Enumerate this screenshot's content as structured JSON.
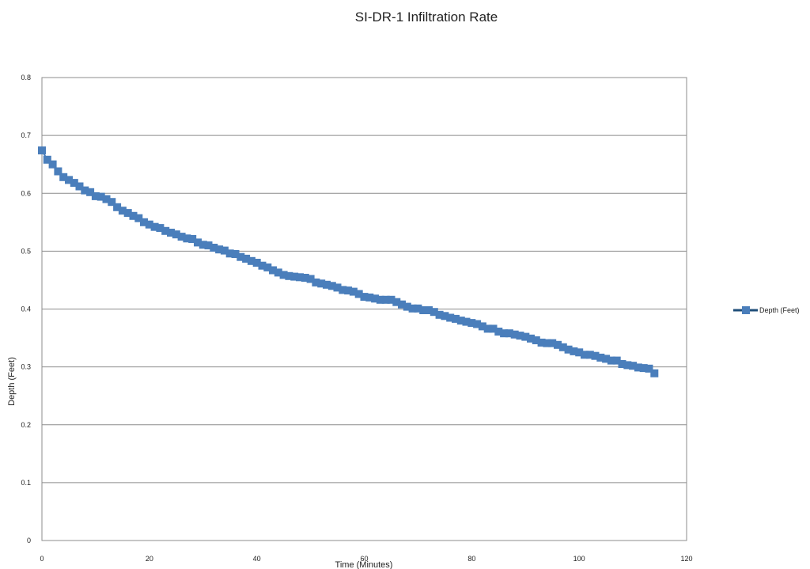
{
  "chart_data": {
    "type": "line",
    "title": "SI-DR-1 Infiltration Rate",
    "xlabel": "Time (Minutes)",
    "ylabel": "Depth (Feet)",
    "xlim": [
      0,
      120
    ],
    "ylim": [
      0,
      0.8
    ],
    "x_ticks": [
      "0",
      "20",
      "40",
      "60",
      "80",
      "100",
      "120"
    ],
    "y_ticks": [
      "0",
      "0.1",
      "0.2",
      "0.3",
      "0.4",
      "0.5",
      "0.6",
      "0.7",
      "0.8"
    ],
    "grid": "horizontal",
    "legend_position": "right",
    "marker": "square",
    "color": "#4a7ebb",
    "series": [
      {
        "name": "Depth (Feet)",
        "x": [
          0,
          1,
          2,
          3,
          4,
          5,
          6,
          7,
          8,
          9,
          10,
          11,
          12,
          13,
          14,
          15,
          16,
          17,
          18,
          19,
          20,
          21,
          22,
          23,
          24,
          25,
          26,
          27,
          28,
          29,
          30,
          31,
          32,
          33,
          34,
          35,
          36,
          37,
          38,
          39,
          40,
          41,
          42,
          43,
          44,
          45,
          46,
          47,
          48,
          49,
          50,
          51,
          52,
          53,
          54,
          55,
          56,
          57,
          58,
          59,
          60,
          61,
          62,
          63,
          64,
          65,
          66,
          67,
          68,
          69,
          70,
          71,
          72,
          73,
          74,
          75,
          76,
          77,
          78,
          79,
          80,
          81,
          82,
          83,
          84,
          85,
          86,
          87,
          88,
          89,
          90,
          91,
          92,
          93,
          94,
          95,
          96,
          97,
          98,
          99,
          100,
          101,
          102,
          103,
          104,
          105,
          106,
          107,
          108,
          109,
          110,
          111,
          112,
          113,
          114
        ],
        "values": [
          0.674,
          0.658,
          0.65,
          0.638,
          0.628,
          0.623,
          0.618,
          0.612,
          0.605,
          0.602,
          0.595,
          0.594,
          0.59,
          0.585,
          0.576,
          0.57,
          0.566,
          0.561,
          0.557,
          0.55,
          0.546,
          0.542,
          0.54,
          0.535,
          0.532,
          0.529,
          0.525,
          0.522,
          0.521,
          0.515,
          0.511,
          0.51,
          0.506,
          0.503,
          0.501,
          0.496,
          0.495,
          0.49,
          0.487,
          0.483,
          0.48,
          0.475,
          0.472,
          0.467,
          0.463,
          0.459,
          0.457,
          0.456,
          0.455,
          0.454,
          0.452,
          0.446,
          0.444,
          0.442,
          0.44,
          0.437,
          0.433,
          0.432,
          0.43,
          0.426,
          0.421,
          0.42,
          0.418,
          0.416,
          0.416,
          0.416,
          0.412,
          0.408,
          0.404,
          0.401,
          0.401,
          0.398,
          0.398,
          0.395,
          0.39,
          0.388,
          0.385,
          0.383,
          0.38,
          0.378,
          0.376,
          0.374,
          0.37,
          0.366,
          0.366,
          0.361,
          0.358,
          0.358,
          0.356,
          0.354,
          0.352,
          0.349,
          0.346,
          0.342,
          0.341,
          0.341,
          0.338,
          0.334,
          0.33,
          0.327,
          0.325,
          0.321,
          0.321,
          0.319,
          0.316,
          0.314,
          0.311,
          0.311,
          0.305,
          0.303,
          0.302,
          0.299,
          0.298,
          0.297,
          0.289
        ]
      }
    ]
  }
}
